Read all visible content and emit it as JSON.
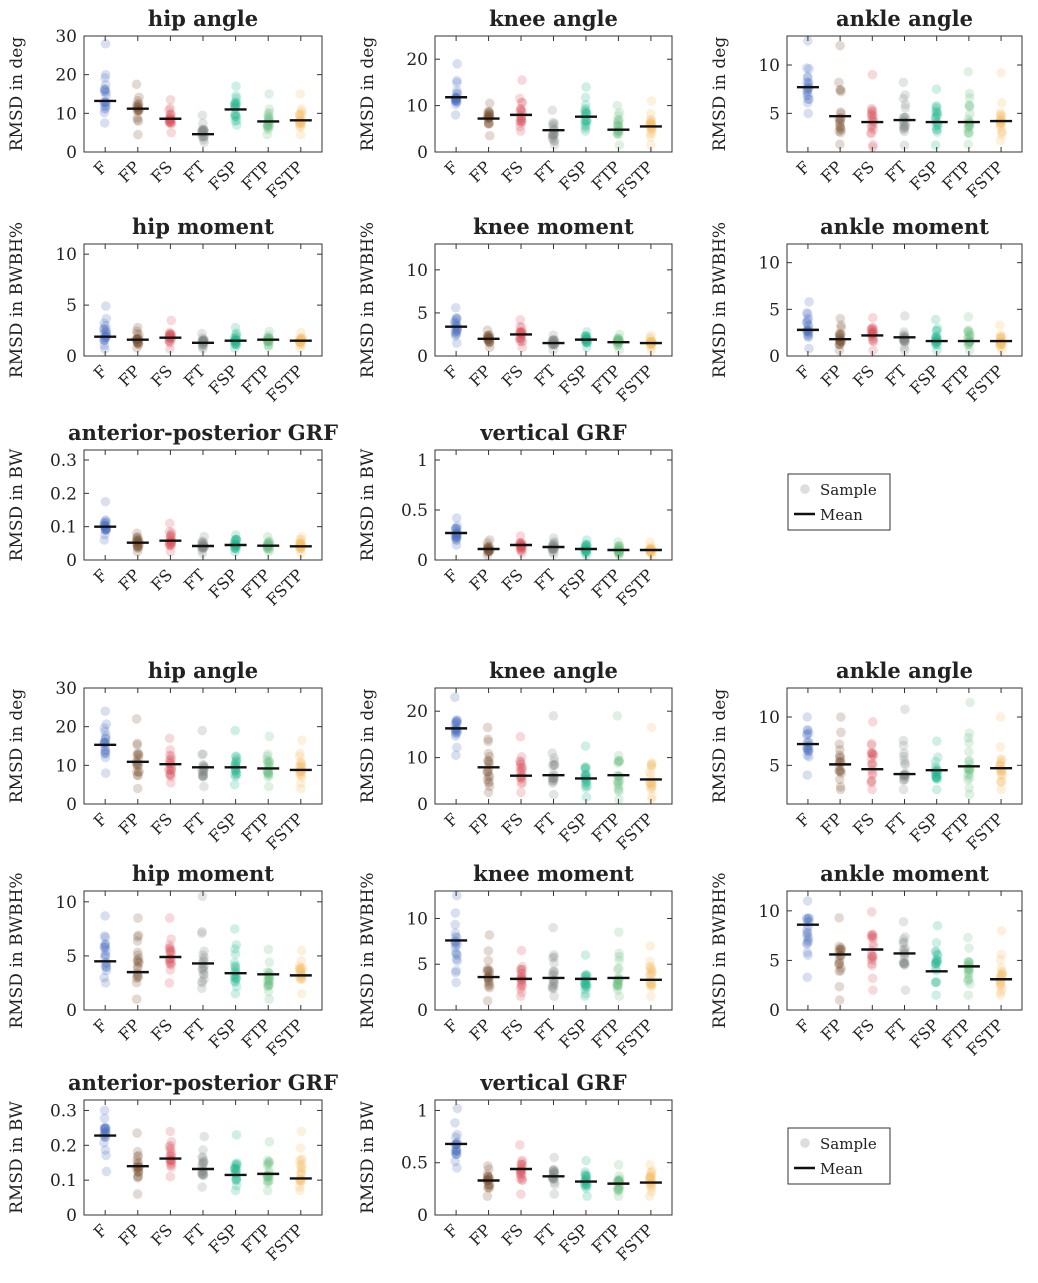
{
  "methods": [
    "F",
    "FP",
    "FS",
    "FT",
    "FSP",
    "FTP",
    "FSTP"
  ],
  "method_colors": [
    "#4a6fc0",
    "#7a5230",
    "#d9505a",
    "#7f8a86",
    "#1fb58f",
    "#6ac17e",
    "#f5c06b"
  ],
  "legend": {
    "sample": "Sample",
    "mean": "Mean"
  },
  "chart_data": [
    {
      "type": "scatter",
      "group": "top",
      "title": "hip angle",
      "ylabel": "RMSD in deg",
      "ylim": [
        0,
        30
      ],
      "yticks": [
        0,
        10,
        20,
        30
      ],
      "mean": [
        13.2,
        11.2,
        8.6,
        4.6,
        11.0,
        7.9,
        8.2
      ],
      "min": [
        7.5,
        4.5,
        5.0,
        2.5,
        7.0,
        4.5,
        4.5
      ],
      "max": [
        28.0,
        17.5,
        13.5,
        9.5,
        17.0,
        15.0,
        15.0
      ]
    },
    {
      "type": "scatter",
      "group": "top",
      "title": "knee angle",
      "ylabel": "RMSD in deg",
      "ylim": [
        0,
        25
      ],
      "yticks": [
        0,
        10,
        20
      ],
      "mean": [
        11.8,
        7.2,
        8.0,
        4.7,
        7.6,
        4.8,
        5.5
      ],
      "min": [
        8.0,
        3.5,
        4.5,
        1.5,
        4.5,
        1.5,
        1.5
      ],
      "max": [
        19.0,
        10.5,
        15.5,
        9.0,
        14.0,
        10.0,
        11.0
      ]
    },
    {
      "type": "scatter",
      "group": "top",
      "title": "ankle angle",
      "ylabel": "RMSD in deg",
      "ylim": [
        1,
        13
      ],
      "yticks": [
        5,
        10
      ],
      "mean": [
        7.7,
        4.7,
        4.1,
        4.3,
        4.1,
        4.1,
        4.2
      ],
      "min": [
        5.0,
        1.8,
        1.5,
        1.7,
        1.7,
        1.8,
        2.2
      ],
      "max": [
        12.5,
        12.0,
        9.0,
        8.2,
        7.5,
        9.3,
        9.2
      ]
    },
    {
      "type": "scatter",
      "group": "top",
      "title": "hip moment",
      "ylabel": "RMSD in BWBH%",
      "ylim": [
        0,
        11
      ],
      "yticks": [
        0,
        5,
        10
      ],
      "mean": [
        1.9,
        1.6,
        1.8,
        1.3,
        1.5,
        1.6,
        1.5
      ],
      "min": [
        0.7,
        0.8,
        0.7,
        0.7,
        0.8,
        0.9,
        0.8
      ],
      "max": [
        4.9,
        2.8,
        3.5,
        2.2,
        2.8,
        2.4,
        2.3
      ]
    },
    {
      "type": "scatter",
      "group": "top",
      "title": "knee moment",
      "ylabel": "RMSD in BWBH%",
      "ylim": [
        0,
        13
      ],
      "yticks": [
        0,
        5,
        10
      ],
      "mean": [
        3.4,
        2.0,
        2.5,
        1.5,
        1.9,
        1.6,
        1.5
      ],
      "min": [
        1.5,
        1.0,
        1.0,
        0.7,
        1.0,
        0.7,
        0.6
      ],
      "max": [
        5.6,
        3.0,
        4.2,
        2.4,
        2.8,
        2.5,
        2.4
      ]
    },
    {
      "type": "scatter",
      "group": "top",
      "title": "ankle moment",
      "ylabel": "RMSD in BWBH%",
      "ylim": [
        0,
        12
      ],
      "yticks": [
        0,
        5,
        10
      ],
      "mean": [
        2.8,
        1.8,
        2.2,
        2.0,
        1.6,
        1.6,
        1.6
      ],
      "min": [
        0.8,
        0.6,
        0.6,
        0.6,
        0.6,
        0.6,
        0.6
      ],
      "max": [
        5.8,
        4.0,
        4.1,
        4.3,
        3.9,
        4.2,
        3.3
      ]
    },
    {
      "type": "scatter",
      "group": "top",
      "title": "anterior-posterior GRF",
      "ylabel": "RMSD in BW",
      "ylim": [
        0,
        0.33
      ],
      "yticks": [
        0,
        0.1,
        0.2,
        0.3
      ],
      "mean": [
        0.1,
        0.052,
        0.058,
        0.042,
        0.045,
        0.043,
        0.041
      ],
      "min": [
        0.06,
        0.025,
        0.025,
        0.02,
        0.025,
        0.025,
        0.02
      ],
      "max": [
        0.175,
        0.08,
        0.11,
        0.07,
        0.075,
        0.07,
        0.07
      ]
    },
    {
      "type": "scatter",
      "group": "top",
      "title": "vertical GRF",
      "ylabel": "RMSD in BW",
      "ylim": [
        0,
        1.1
      ],
      "yticks": [
        0,
        0.5,
        1
      ],
      "mean": [
        0.27,
        0.11,
        0.15,
        0.13,
        0.11,
        0.1,
        0.1
      ],
      "min": [
        0.15,
        0.05,
        0.07,
        0.06,
        0.05,
        0.05,
        0.05
      ],
      "max": [
        0.42,
        0.2,
        0.24,
        0.22,
        0.2,
        0.18,
        0.18
      ]
    },
    {
      "type": "scatter",
      "group": "bottom",
      "title": "hip angle",
      "ylabel": "RMSD in deg",
      "ylim": [
        0,
        30
      ],
      "yticks": [
        0,
        10,
        20,
        30
      ],
      "mean": [
        15.3,
        10.9,
        10.3,
        9.5,
        9.5,
        9.2,
        8.8
      ],
      "min": [
        8.0,
        4.0,
        5.5,
        4.5,
        5.0,
        4.5,
        4.0
      ],
      "max": [
        24.0,
        22.0,
        17.0,
        19.0,
        19.0,
        17.5,
        16.5
      ]
    },
    {
      "type": "scatter",
      "group": "bottom",
      "title": "knee angle",
      "ylabel": "RMSD in deg",
      "ylim": [
        0,
        25
      ],
      "yticks": [
        0,
        10,
        20
      ],
      "mean": [
        16.3,
        7.9,
        6.1,
        6.2,
        5.5,
        6.2,
        5.3
      ],
      "min": [
        10.5,
        2.5,
        2.5,
        2.0,
        1.5,
        1.0,
        1.0
      ],
      "max": [
        23.0,
        16.5,
        14.5,
        19.0,
        12.5,
        19.0,
        16.5
      ]
    },
    {
      "type": "scatter",
      "group": "bottom",
      "title": "ankle angle",
      "ylabel": "RMSD in deg",
      "ylim": [
        1,
        13
      ],
      "yticks": [
        5,
        10
      ],
      "mean": [
        7.2,
        5.1,
        4.6,
        4.1,
        4.5,
        4.9,
        4.7
      ],
      "min": [
        4.0,
        2.5,
        2.5,
        2.5,
        2.5,
        2.0,
        2.5
      ],
      "max": [
        10.0,
        10.0,
        9.5,
        10.8,
        7.5,
        11.5,
        10.0
      ]
    },
    {
      "type": "scatter",
      "group": "bottom",
      "title": "hip moment",
      "ylabel": "RMSD in BWBH%",
      "ylim": [
        0,
        11
      ],
      "yticks": [
        0,
        5,
        10
      ],
      "mean": [
        4.5,
        3.5,
        4.9,
        4.3,
        3.4,
        3.3,
        3.2
      ],
      "min": [
        2.5,
        1.0,
        2.5,
        2.0,
        1.5,
        1.0,
        1.5
      ],
      "max": [
        8.7,
        8.5,
        8.5,
        10.5,
        7.5,
        5.6,
        5.5
      ]
    },
    {
      "type": "scatter",
      "group": "bottom",
      "title": "knee moment",
      "ylabel": "RMSD in BWBH%",
      "ylim": [
        0,
        13
      ],
      "yticks": [
        0,
        5,
        10
      ],
      "mean": [
        7.6,
        3.6,
        3.4,
        3.5,
        3.4,
        3.5,
        3.3
      ],
      "min": [
        3.0,
        1.0,
        1.5,
        1.5,
        1.5,
        1.5,
        1.5
      ],
      "max": [
        12.5,
        8.2,
        6.5,
        9.0,
        6.0,
        8.5,
        7.0
      ]
    },
    {
      "type": "scatter",
      "group": "bottom",
      "title": "ankle moment",
      "ylabel": "RMSD in BWBH%",
      "ylim": [
        0,
        12
      ],
      "yticks": [
        0,
        5,
        10
      ],
      "mean": [
        8.6,
        5.6,
        6.1,
        5.7,
        3.9,
        4.4,
        3.1
      ],
      "min": [
        3.3,
        1.0,
        2.0,
        2.0,
        1.5,
        1.5,
        1.5
      ],
      "max": [
        11.0,
        9.3,
        9.9,
        8.9,
        8.5,
        7.3,
        8.0
      ]
    },
    {
      "type": "scatter",
      "group": "bottom",
      "title": "anterior-posterior GRF",
      "ylabel": "RMSD in BW",
      "ylim": [
        0,
        0.33
      ],
      "yticks": [
        0,
        0.1,
        0.2,
        0.3
      ],
      "mean": [
        0.228,
        0.14,
        0.162,
        0.132,
        0.115,
        0.118,
        0.105
      ],
      "min": [
        0.125,
        0.06,
        0.11,
        0.08,
        0.07,
        0.07,
        0.07
      ],
      "max": [
        0.3,
        0.235,
        0.24,
        0.225,
        0.23,
        0.21,
        0.24
      ]
    },
    {
      "type": "scatter",
      "group": "bottom",
      "title": "vertical GRF",
      "ylabel": "RMSD in BW",
      "ylim": [
        0,
        1.1
      ],
      "yticks": [
        0,
        0.5,
        1
      ],
      "mean": [
        0.68,
        0.33,
        0.44,
        0.37,
        0.32,
        0.3,
        0.31
      ],
      "min": [
        0.45,
        0.18,
        0.2,
        0.2,
        0.18,
        0.18,
        0.18
      ],
      "max": [
        1.02,
        0.47,
        0.67,
        0.55,
        0.52,
        0.48,
        0.48
      ]
    }
  ]
}
